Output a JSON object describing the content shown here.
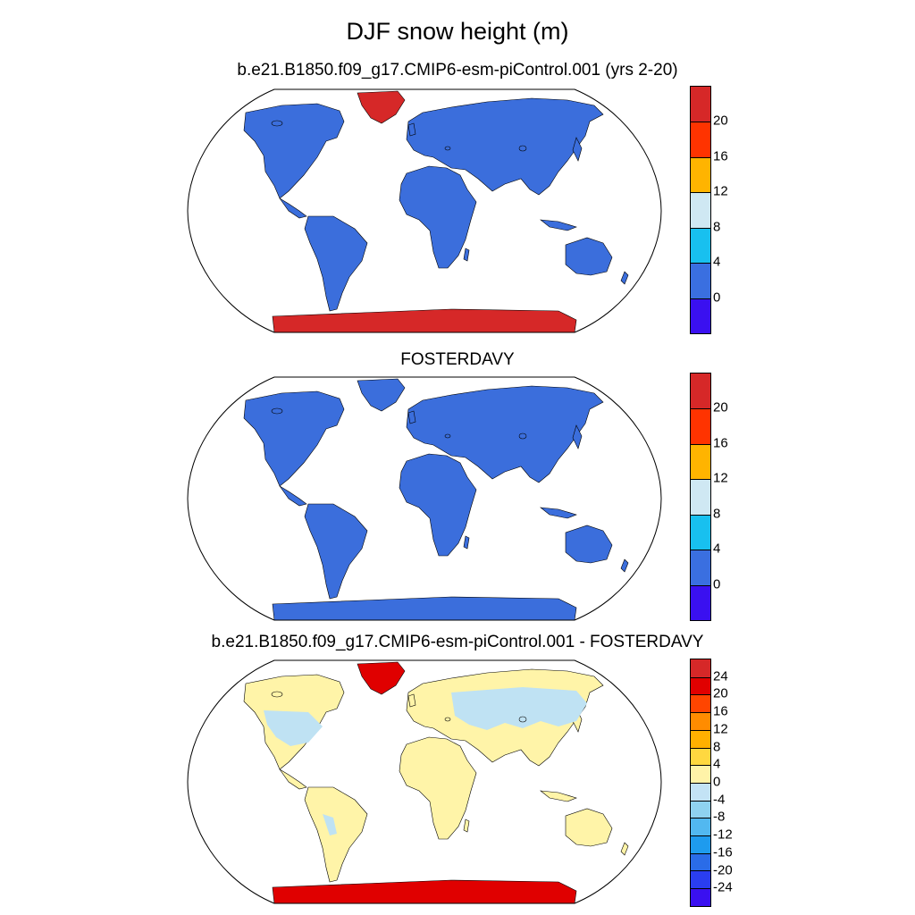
{
  "title": "DJF snow height (m)",
  "panels": [
    {
      "title": "b.e21.B1850.f09_g17.CMIP6-esm-piControl.001 (yrs 2-20)",
      "colorbar": {
        "colors": [
          "#d62828",
          "#ff3300",
          "#ffb400",
          "#cfe8f3",
          "#18c0ef",
          "#3a6fe0",
          "#3a10f0"
        ],
        "labels": [
          "20",
          "16",
          "12",
          "8",
          "4",
          "0"
        ]
      },
      "land_color": "#3b6edc",
      "ice_color": "#d62828",
      "antarctica_color": "#d62828"
    },
    {
      "title": "FOSTERDAVY",
      "colorbar": {
        "colors": [
          "#d62828",
          "#ff3300",
          "#ffb400",
          "#cfe8f3",
          "#18c0ef",
          "#3a6fe0",
          "#3a10f0"
        ],
        "labels": [
          "20",
          "16",
          "12",
          "8",
          "4",
          "0"
        ]
      },
      "land_color": "#3b6edc",
      "ice_color": "#3b6edc",
      "antarctica_color": "#3b6edc"
    },
    {
      "title": "b.e21.B1850.f09_g17.CMIP6-esm-piControl.001 - FOSTERDAVY",
      "colorbar": {
        "colors": [
          "#d62828",
          "#e00000",
          "#ff4500",
          "#ff8c00",
          "#ffb000",
          "#ffd840",
          "#fff3a8",
          "#c3e3f5",
          "#8fd2f0",
          "#52b8f0",
          "#1e9bee",
          "#2a6ce8",
          "#2a3ef0",
          "#3a10f0"
        ],
        "labels": [
          "24",
          "20",
          "16",
          "12",
          "8",
          "4",
          "0",
          "-4",
          "-8",
          "-12",
          "-16",
          "-20",
          "-24"
        ]
      },
      "land_color": "#fff4a8",
      "ice_color": "#e00000",
      "antarctica_color": "#e00000",
      "cold_color": "#bfe2f3"
    }
  ]
}
